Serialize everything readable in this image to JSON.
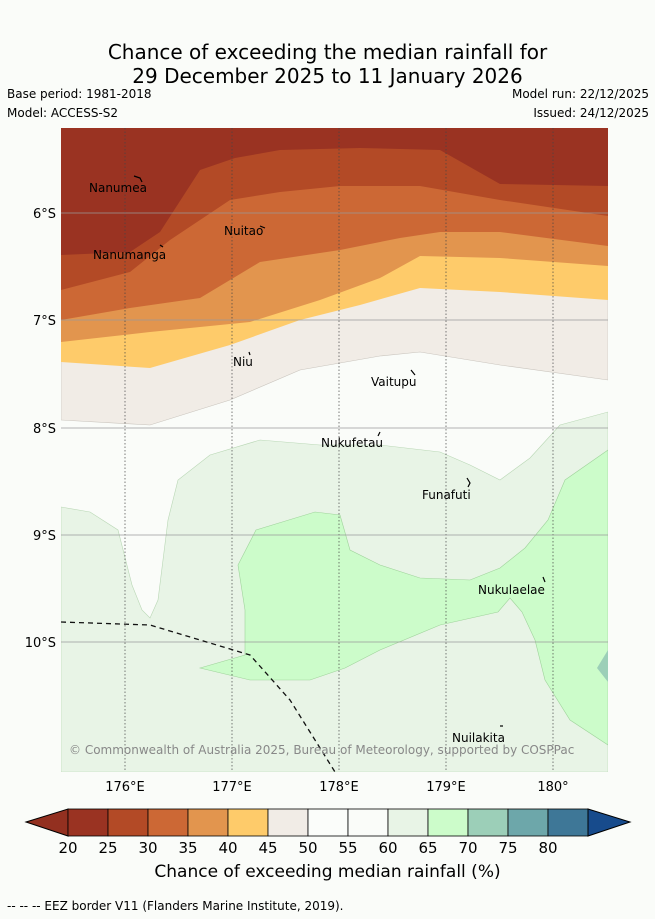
{
  "title": {
    "line1": "Chance of exceeding the median rainfall for",
    "line2": "29 December 2025 to 11 January 2026"
  },
  "meta": {
    "base_period": "Base period: 1981-2018",
    "model": "Model: ACCESS-S2",
    "model_run": "Model run: 22/12/2025",
    "issued": "Issued: 24/12/2025"
  },
  "map": {
    "lon_ticks": [
      "176°E",
      "177°E",
      "178°E",
      "179°E",
      "180°"
    ],
    "lat_ticks": [
      "6°S",
      "7°S",
      "8°S",
      "9°S",
      "10°S"
    ],
    "places": [
      "Nanumea",
      "Nuitao",
      "Nanumanga",
      "Niu",
      "Vaitupu",
      "Nukufetau",
      "Funafuti",
      "Nukulaelae",
      "Nuilakita"
    ],
    "copyright": "© Commonwealth of Australia 2025, Bureau of Meteorology, supported by COSPPac"
  },
  "colorbar": {
    "ticks": [
      "20",
      "25",
      "30",
      "35",
      "40",
      "45",
      "50",
      "55",
      "60",
      "65",
      "70",
      "75",
      "80"
    ],
    "colors": [
      "#9a3322",
      "#b34a26",
      "#cc6835",
      "#e2954e",
      "#fecb6a",
      "#f1ece6",
      "#fbfdfa",
      "#fafcf9",
      "#e8f4e6",
      "#ccfcca",
      "#9ccfb8",
      "#6da7aa",
      "#3e7797"
    ],
    "low_color": "#933020",
    "high_color": "#174b8c",
    "title": "Chance of exceeding median rainfall (%)"
  },
  "legend": {
    "eez": "-- -- -- EEZ border V11 (Flanders Marine Institute, 2019)."
  }
}
